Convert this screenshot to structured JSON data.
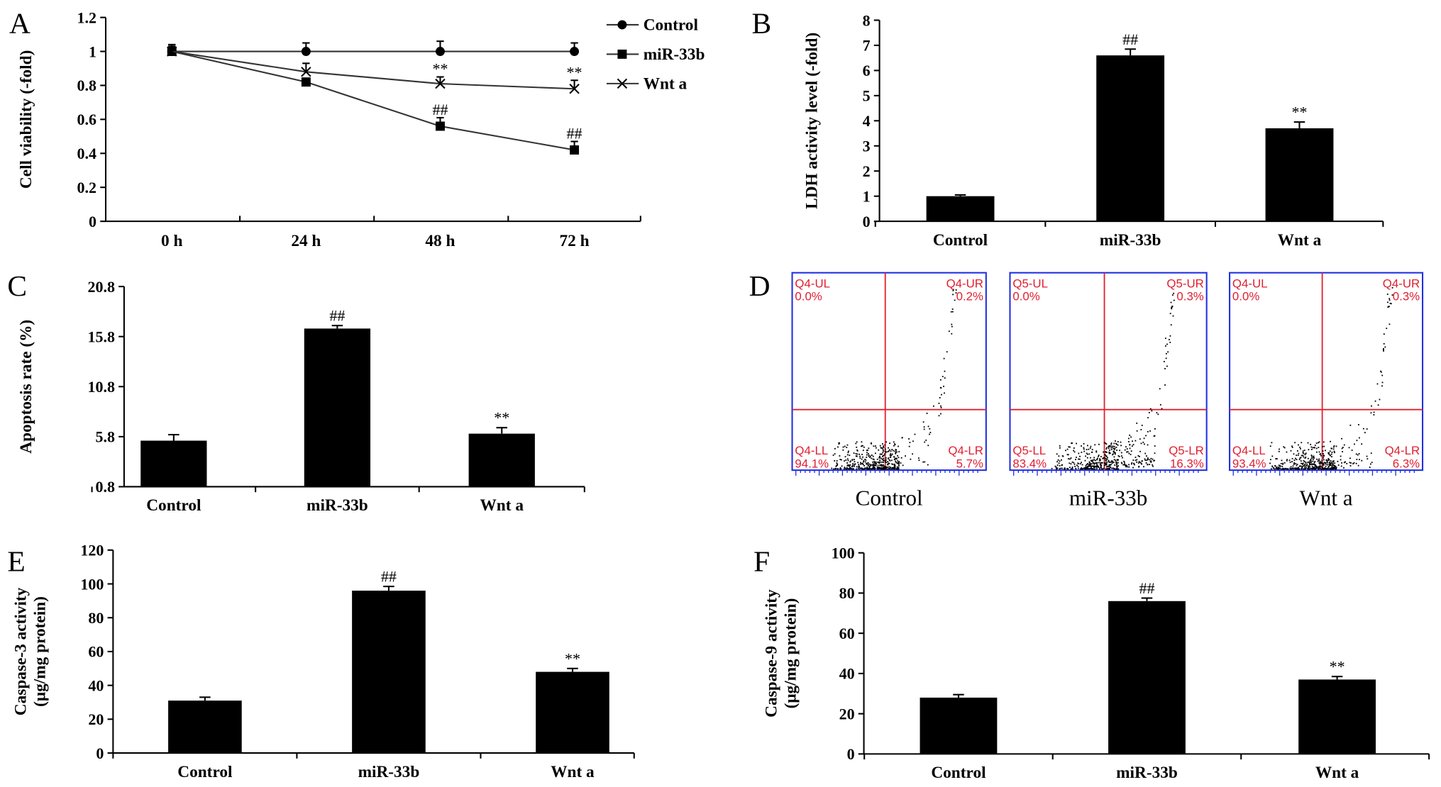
{
  "chart_data": [
    {
      "panel": "A",
      "type": "line",
      "ylabel": "Cell viability (-fold)",
      "ylim": [
        0,
        1.2
      ],
      "yticks": [
        "0",
        "0.2",
        "0.4",
        "0.6",
        "0.8",
        "1",
        "1.2"
      ],
      "categories": [
        "0 h",
        "24 h",
        "48 h",
        "72 h"
      ],
      "legend": "top-right",
      "series": [
        {
          "name": "Control",
          "marker": "circle",
          "values": [
            1,
            1,
            1,
            1
          ],
          "errors": [
            0.04,
            0.05,
            0.06,
            0.05
          ],
          "annotations": [
            "",
            "",
            "",
            ""
          ]
        },
        {
          "name": "miR-33b",
          "marker": "square",
          "values": [
            1,
            0.82,
            0.56,
            0.42
          ],
          "errors": [
            0.04,
            0.02,
            0.05,
            0.05
          ],
          "annotations": [
            "",
            "",
            "##",
            "##"
          ]
        },
        {
          "name": "Wnt a",
          "marker": "x",
          "values": [
            1,
            0.88,
            0.81,
            0.78
          ],
          "errors": [
            0.03,
            0.05,
            0.04,
            0.05
          ],
          "annotations": [
            "",
            "",
            "**",
            "**"
          ]
        }
      ]
    },
    {
      "panel": "B",
      "type": "bar",
      "ylabel": "LDH activity level (-fold)",
      "ylim": [
        0,
        8
      ],
      "yticks": [
        "0",
        "1",
        "2",
        "3",
        "4",
        "5",
        "6",
        "7",
        "8"
      ],
      "categories": [
        "Control",
        "miR-33b",
        "Wnt a"
      ],
      "values": [
        1.0,
        6.6,
        3.7
      ],
      "errors": [
        0.05,
        0.25,
        0.25
      ],
      "annotations": [
        "",
        "##",
        "**"
      ]
    },
    {
      "panel": "C",
      "type": "bar",
      "ylabel": "Apoptosis rate (%)",
      "ylim": [
        0.8,
        20.8
      ],
      "yticks": [
        "0.8",
        "5.8",
        "10.8",
        "15.8",
        "20.8"
      ],
      "categories": [
        "Control",
        "miR-33b",
        "Wnt a"
      ],
      "values": [
        5.4,
        16.6,
        6.1
      ],
      "errors": [
        0.6,
        0.3,
        0.6
      ],
      "annotations": [
        "",
        "##",
        "**"
      ]
    },
    {
      "panel": "D",
      "type": "scatter",
      "plots": [
        {
          "label": "Control",
          "quadrants": {
            "UL": [
              "Q4-UL",
              "0.0%"
            ],
            "UR": [
              "Q4-UR",
              "0.2%"
            ],
            "LL": [
              "Q4-LL",
              "94.1%"
            ],
            "LR": [
              "Q4-LR",
              "5.7%"
            ]
          }
        },
        {
          "label": "miR-33b",
          "quadrants": {
            "UL": [
              "Q5-UL",
              "0.0%"
            ],
            "UR": [
              "Q5-UR",
              "0.3%"
            ],
            "LL": [
              "Q5-LL",
              "83.4%"
            ],
            "LR": [
              "Q5-LR",
              "16.3%"
            ]
          }
        },
        {
          "label": "Wnt a",
          "quadrants": {
            "UL": [
              "Q4-UL",
              "0.0%"
            ],
            "UR": [
              "Q4-UR",
              "0.3%"
            ],
            "LL": [
              "Q4-LL",
              "93.4%"
            ],
            "LR": [
              "Q4-LR",
              "6.3%"
            ]
          }
        }
      ]
    },
    {
      "panel": "E",
      "type": "bar",
      "ylabel": [
        "Caspase-3 activity",
        "(μg/mg protein)"
      ],
      "ylim": [
        0,
        120
      ],
      "yticks": [
        "0",
        "20",
        "40",
        "60",
        "80",
        "100",
        "120"
      ],
      "categories": [
        "Control",
        "miR-33b",
        "Wnt a"
      ],
      "values": [
        31,
        96,
        48
      ],
      "errors": [
        2,
        2.5,
        2
      ],
      "annotations": [
        "",
        "##",
        "**"
      ]
    },
    {
      "panel": "F",
      "type": "bar",
      "ylabel": [
        "Caspase-9 activity",
        "(μg/mg protein)"
      ],
      "ylim": [
        0,
        100
      ],
      "yticks": [
        "0",
        "20",
        "40",
        "60",
        "80",
        "100"
      ],
      "categories": [
        "Control",
        "miR-33b",
        "Wnt a"
      ],
      "values": [
        28,
        76,
        37
      ],
      "errors": [
        1.5,
        1.5,
        1.5
      ],
      "annotations": [
        "",
        "##",
        "**"
      ]
    }
  ],
  "colors": {
    "bar": "#000000",
    "quadrant_line": "#e02030",
    "flow_frame": "#2030e0",
    "dots": "#000000"
  }
}
